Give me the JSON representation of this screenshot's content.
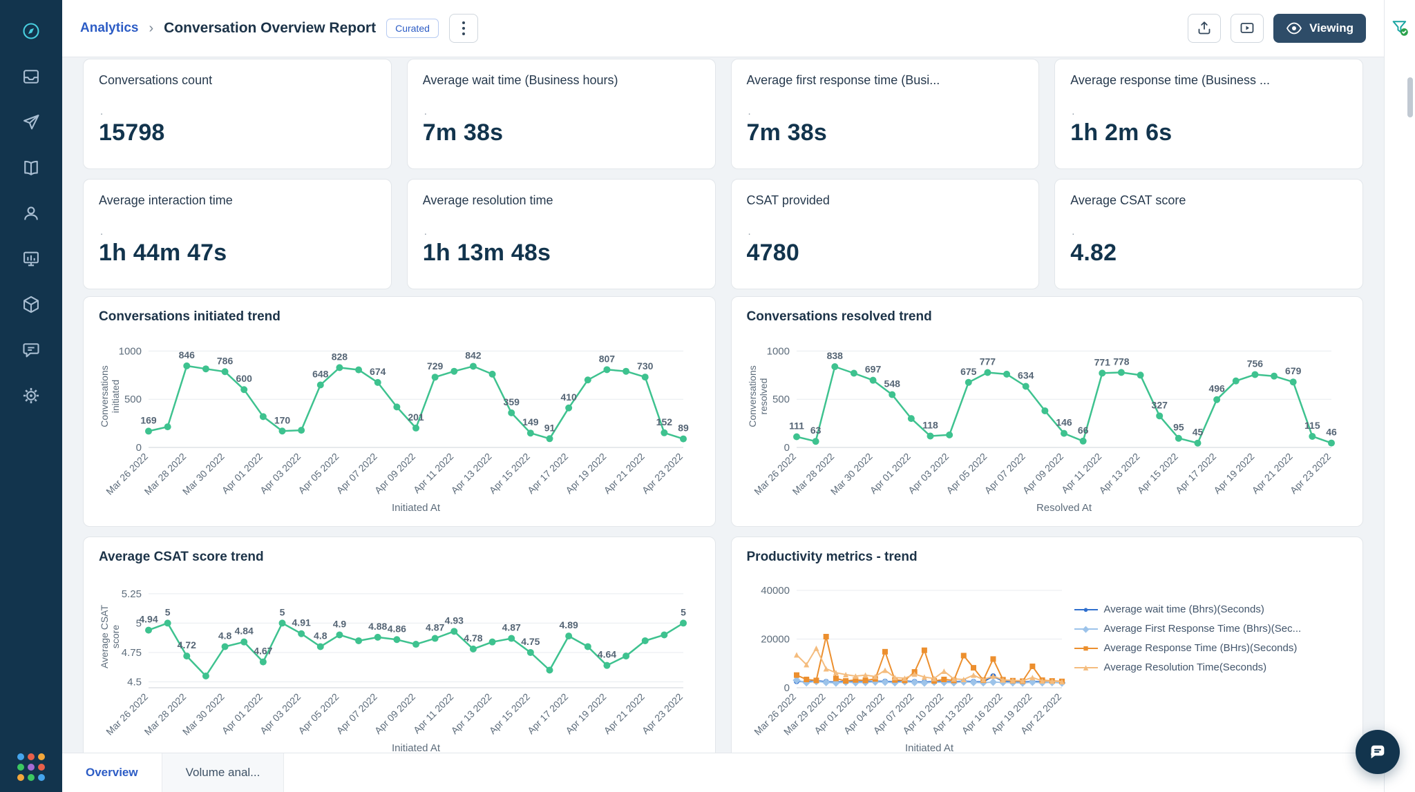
{
  "header": {
    "breadcrumb": "Analytics",
    "sep": "›",
    "title": "Conversation Overview Report",
    "badge": "Curated",
    "viewing_label": "Viewing"
  },
  "strings": {
    "metric_dot": "."
  },
  "metrics": [
    {
      "title": "Conversations count",
      "value": "15798"
    },
    {
      "title": "Average wait time (Business hours)",
      "value": "7m 38s"
    },
    {
      "title": "Average first response time (Busi...",
      "value": "7m 38s"
    },
    {
      "title": "Average response time (Business ...",
      "value": "1h 2m 6s"
    },
    {
      "title": "Average interaction time",
      "value": "1h 44m 47s"
    },
    {
      "title": "Average resolution time",
      "value": "1h 13m 48s"
    },
    {
      "title": "CSAT provided",
      "value": "4780"
    },
    {
      "title": "Average CSAT score",
      "value": "4.82"
    }
  ],
  "tabs": [
    {
      "label": "Overview"
    },
    {
      "label": "Volume anal..."
    }
  ],
  "colors": {
    "accent_blue": "#2c5cc5",
    "navy": "#12344d",
    "chart_green": "#3ec28f"
  },
  "chart_data": [
    {
      "type": "line",
      "title": "Conversations initiated trend",
      "xlabel": "Initiated At",
      "ylabel": "Conversations initiated",
      "y_ticks": [
        0,
        500,
        1000
      ],
      "y_domain": [
        0,
        1060
      ],
      "x_tick_step": 2,
      "x_tick_labels": [
        "Mar 26 2022",
        "Mar 28 2022",
        "Mar 30 2022",
        "Apr 01 2022",
        "Apr 03 2022",
        "Apr 05 2022",
        "Apr 07 2022",
        "Apr 09 2022",
        "Apr 11 2022",
        "Apr 13 2022",
        "Apr 15 2022",
        "Apr 17 2022",
        "Apr 19 2022",
        "Apr 21 2022",
        "Apr 23 2022"
      ],
      "series": [
        {
          "name": "Conversations initiated",
          "color": "#3ec28f",
          "marker": "circle",
          "values": [
            169,
            214,
            846,
            815,
            786,
            600,
            320,
            170,
            178,
            648,
            828,
            805,
            674,
            420,
            201,
            729,
            790,
            842,
            760,
            359,
            149,
            91,
            410,
            700,
            807,
            790,
            730,
            152,
            89
          ],
          "labels": [
            "169",
            "",
            "846",
            "",
            "786",
            "600",
            "",
            "170",
            "",
            "648",
            "828",
            "",
            "674",
            "",
            "201",
            "729",
            "",
            "842",
            "",
            "359",
            "149",
            "91",
            "410",
            "",
            "807",
            "",
            "730",
            "152",
            "89"
          ]
        }
      ]
    },
    {
      "type": "line",
      "title": "Conversations resolved trend",
      "xlabel": "Resolved At",
      "ylabel": "Conversations resolved",
      "y_ticks": [
        0,
        500,
        1000
      ],
      "y_domain": [
        0,
        1060
      ],
      "x_tick_step": 2,
      "x_tick_labels": [
        "Mar 26 2022",
        "Mar 28 2022",
        "Mar 30 2022",
        "Apr 01 2022",
        "Apr 03 2022",
        "Apr 05 2022",
        "Apr 07 2022",
        "Apr 09 2022",
        "Apr 11 2022",
        "Apr 13 2022",
        "Apr 15 2022",
        "Apr 17 2022",
        "Apr 19 2022",
        "Apr 21 2022",
        "Apr 23 2022"
      ],
      "series": [
        {
          "name": "Conversations resolved",
          "color": "#3ec28f",
          "marker": "circle",
          "values": [
            111,
            63,
            838,
            770,
            697,
            548,
            300,
            118,
            130,
            675,
            777,
            760,
            634,
            380,
            146,
            66,
            771,
            778,
            750,
            327,
            95,
            45,
            496,
            690,
            756,
            740,
            679,
            115,
            46
          ],
          "labels": [
            "111",
            "63",
            "838",
            "",
            "697",
            "548",
            "",
            "118",
            "",
            "675",
            "777",
            "",
            "634",
            "",
            "146",
            "66",
            "771",
            "778",
            "",
            "327",
            "95",
            "45",
            "496",
            "",
            "756",
            "",
            "679",
            "115",
            "46"
          ]
        }
      ]
    },
    {
      "type": "line",
      "title": "Average CSAT score trend",
      "xlabel": "Initiated At",
      "ylabel": "Average CSAT score",
      "y_ticks": [
        4.5,
        4.75,
        5,
        5.25
      ],
      "y_domain": [
        4.45,
        5.32
      ],
      "x_tick_step": 2,
      "x_tick_labels": [
        "Mar 26 2022",
        "Mar 28 2022",
        "Mar 30 2022",
        "Apr 01 2022",
        "Apr 03 2022",
        "Apr 05 2022",
        "Apr 07 2022",
        "Apr 09 2022",
        "Apr 11 2022",
        "Apr 13 2022",
        "Apr 15 2022",
        "Apr 17 2022",
        "Apr 19 2022",
        "Apr 21 2022",
        "Apr 23 2022"
      ],
      "series": [
        {
          "name": "Average CSAT score",
          "color": "#3ec28f",
          "marker": "circle",
          "values": [
            4.94,
            5,
            4.72,
            4.55,
            4.8,
            4.84,
            4.67,
            5,
            4.91,
            4.8,
            4.9,
            4.85,
            4.88,
            4.86,
            4.82,
            4.87,
            4.93,
            4.78,
            4.84,
            4.87,
            4.75,
            4.6,
            4.89,
            4.8,
            4.64,
            4.72,
            4.85,
            4.9,
            5
          ],
          "labels": [
            "4.94",
            "5",
            "4.72",
            "",
            "4.8",
            "4.84",
            "4.67",
            "5",
            "4.91",
            "4.8",
            "4.9",
            "",
            "4.88",
            "4.86",
            "",
            "4.87",
            "4.93",
            "4.78",
            "",
            "4.87",
            "4.75",
            "",
            "4.89",
            "",
            "4.64",
            "",
            "",
            "",
            "5"
          ]
        }
      ]
    },
    {
      "type": "line",
      "title": "Productivity metrics - trend",
      "xlabel": "Initiated At",
      "ylabel": "",
      "y_ticks": [
        0,
        20000,
        40000
      ],
      "y_domain": [
        0,
        42000
      ],
      "x_tick_step": 3,
      "x_tick_labels": [
        "Mar 26 2022",
        "Mar 29 2022",
        "Apr 01 2022",
        "Apr 04 2022",
        "Apr 07 2022",
        "Apr 10 2022",
        "Apr 13 2022",
        "Apr 16 2022",
        "Apr 19 2022",
        "Apr 22 2022"
      ],
      "legend_position": "right",
      "series": [
        {
          "name": "Average wait time (Bhrs)(Seconds)",
          "color": "#2f6fce",
          "marker": "circle",
          "values": [
            2600,
            2400,
            2900,
            2500,
            2300,
            2600,
            2400,
            2500,
            2700,
            2600,
            2400,
            2800,
            2500,
            2300,
            2600,
            2500,
            2400,
            2700,
            2500,
            2400,
            4800,
            2600,
            2500,
            2300,
            2600,
            2400,
            2500,
            2300
          ]
        },
        {
          "name": "Average First Response Time (Bhrs)(Sec...",
          "color": "#9cc3ea",
          "marker": "diamond",
          "values": [
            3100,
            2100,
            2600,
            2200,
            2000,
            2300,
            2100,
            2200,
            2400,
            2300,
            2100,
            2500,
            2200,
            2000,
            2300,
            2200,
            2100,
            2400,
            2200,
            2100,
            2300,
            2200,
            2100,
            2000,
            2300,
            2100,
            2200,
            2000
          ]
        },
        {
          "name": "Average Response Time (BHrs)(Seconds)",
          "color": "#ec8f2e",
          "marker": "square",
          "values": [
            5200,
            3400,
            3000,
            21000,
            3800,
            2800,
            3200,
            3000,
            3600,
            14800,
            3200,
            3000,
            6500,
            15400,
            2800,
            3400,
            3000,
            13200,
            8200,
            3100,
            11800,
            3300,
            2900,
            2700,
            8800,
            3100,
            2800,
            2600
          ]
        },
        {
          "name": "Average Resolution Time(Seconds)",
          "color": "#f4bc7e",
          "marker": "triangle",
          "values": [
            13500,
            9500,
            16200,
            7800,
            6200,
            5400,
            4800,
            5200,
            4600,
            7200,
            4200,
            3900,
            5600,
            4400,
            3800,
            6800,
            3600,
            3400,
            5200,
            3300,
            4800,
            3200,
            3000,
            2900,
            4200,
            2800,
            2700,
            2500
          ]
        }
      ]
    }
  ]
}
